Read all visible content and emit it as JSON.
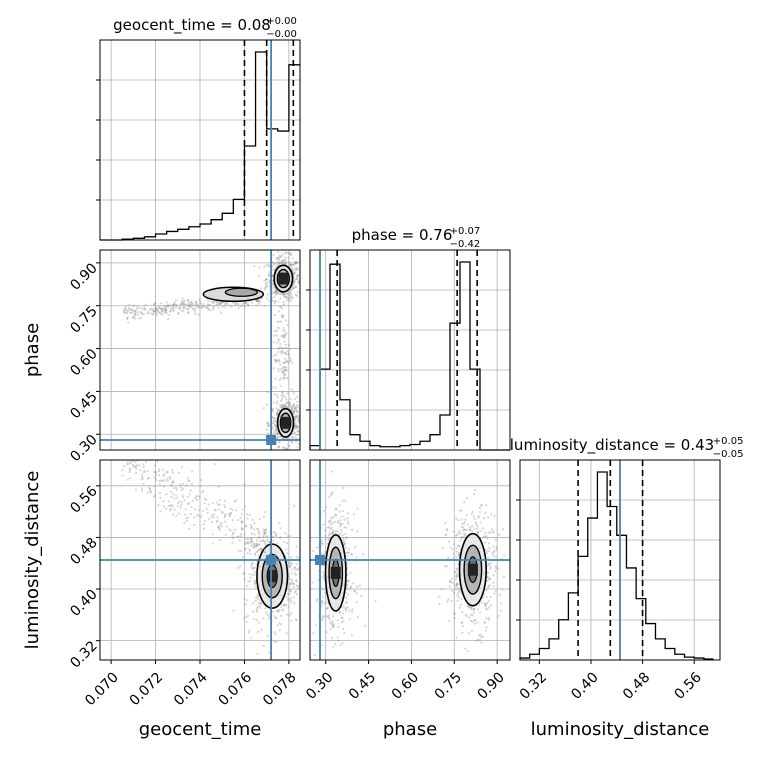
{
  "chart_data": {
    "type": "corner",
    "parameters": [
      "geocent_time",
      "phase",
      "luminosity_distance"
    ],
    "axis_labels": {
      "geocent_time": "geocent_time",
      "phase": "phase",
      "luminosity_distance": "luminosity_distance"
    },
    "ranges": {
      "geocent_time": [
        0.0695,
        0.0785
      ],
      "phase": [
        0.245,
        0.945
      ],
      "luminosity_distance": [
        0.29,
        0.6
      ]
    },
    "ticks": {
      "geocent_time": [
        "0.070",
        "0.072",
        "0.074",
        "0.076",
        "0.078"
      ],
      "phase": [
        "0.30",
        "0.45",
        "0.60",
        "0.75",
        "0.90"
      ],
      "luminosity_distance": [
        "0.32",
        "0.40",
        "0.48",
        "0.56"
      ]
    },
    "truths": {
      "geocent_time": 0.0772,
      "phase": 0.28,
      "luminosity_distance": 0.445
    },
    "truth_color": "#4682b4",
    "titles": {
      "geocent_time": {
        "text": "geocent_time = 0.08",
        "sup": "+0.00",
        "sub": "−0.00"
      },
      "phase": {
        "text": "phase = 0.76",
        "sup": "+0.07",
        "sub": "−0.42"
      },
      "luminosity_distance": {
        "text": "luminosity_distance = 0.43",
        "sup": "+0.05",
        "sub": "−0.05"
      }
    },
    "histograms": {
      "geocent_time": {
        "edges": [
          0.0695,
          0.07,
          0.0705,
          0.071,
          0.0715,
          0.072,
          0.0725,
          0.073,
          0.0735,
          0.074,
          0.0745,
          0.075,
          0.0755,
          0.076,
          0.0765,
          0.077,
          0.0775,
          0.078,
          0.0785
        ],
        "counts": [
          0,
          0,
          0.004,
          0.008,
          0.015,
          0.028,
          0.04,
          0.05,
          0.062,
          0.075,
          0.095,
          0.125,
          0.19,
          0.44,
          0.88,
          0.52,
          0.51,
          0.82
        ],
        "quantiles": [
          0.076,
          0.077,
          0.0782
        ]
      },
      "phase": {
        "edges": [
          0.245,
          0.28,
          0.315,
          0.35,
          0.385,
          0.42,
          0.455,
          0.49,
          0.525,
          0.56,
          0.595,
          0.63,
          0.665,
          0.7,
          0.735,
          0.77,
          0.805,
          0.84,
          0.875,
          0.91,
          0.945
        ],
        "counts": [
          0.02,
          0.37,
          0.85,
          0.23,
          0.07,
          0.04,
          0.02,
          0.015,
          0.015,
          0.02,
          0.025,
          0.04,
          0.07,
          0.16,
          0.58,
          0.86,
          0.37,
          0,
          0,
          0
        ],
        "quantiles": [
          0.34,
          0.76,
          0.83
        ]
      },
      "luminosity_distance": {
        "edges": [
          0.29,
          0.305,
          0.32,
          0.335,
          0.35,
          0.365,
          0.38,
          0.395,
          0.41,
          0.425,
          0.44,
          0.455,
          0.47,
          0.485,
          0.5,
          0.515,
          0.53,
          0.545,
          0.56,
          0.575,
          0.59
        ],
        "counts": [
          0.01,
          0.03,
          0.06,
          0.11,
          0.21,
          0.35,
          0.54,
          0.74,
          0.98,
          0.8,
          0.65,
          0.48,
          0.32,
          0.19,
          0.11,
          0.06,
          0.03,
          0.015,
          0.01,
          0.005
        ],
        "quantiles": [
          0.38,
          0.43,
          0.48
        ]
      }
    },
    "scatter_2d": {
      "phase_vs_geocent_time": {
        "x_param": "geocent_time",
        "y_param": "phase",
        "clusters": [
          {
            "x": [
              0.077,
              0.0785
            ],
            "y": [
              0.77,
              0.92
            ],
            "density": "high"
          },
          {
            "x": [
              0.0705,
              0.0768
            ],
            "y": [
              0.72,
              0.81
            ],
            "density": "medium"
          },
          {
            "x": [
              0.0772,
              0.0785
            ],
            "y": [
              0.26,
              0.42
            ],
            "density": "high"
          },
          {
            "x": [
              0.0773,
              0.0781
            ],
            "y": [
              0.4,
              0.78
            ],
            "density": "low"
          }
        ]
      },
      "luminosity_distance_vs_geocent_time": {
        "x_param": "geocent_time",
        "y_param": "luminosity_distance",
        "clusters": [
          {
            "x": [
              0.076,
              0.0785
            ],
            "y": [
              0.34,
              0.5
            ],
            "density": "high"
          },
          {
            "x": [
              0.0705,
              0.077
            ],
            "y": [
              0.44,
              0.6
            ],
            "density": "medium"
          }
        ]
      },
      "luminosity_distance_vs_phase": {
        "x_param": "phase",
        "y_param": "luminosity_distance",
        "clusters": [
          {
            "x": [
              0.27,
              0.4
            ],
            "y": [
              0.33,
              0.52
            ],
            "density": "high"
          },
          {
            "x": [
              0.73,
              0.9
            ],
            "y": [
              0.34,
              0.52
            ],
            "density": "high"
          }
        ]
      }
    },
    "grid": true
  }
}
